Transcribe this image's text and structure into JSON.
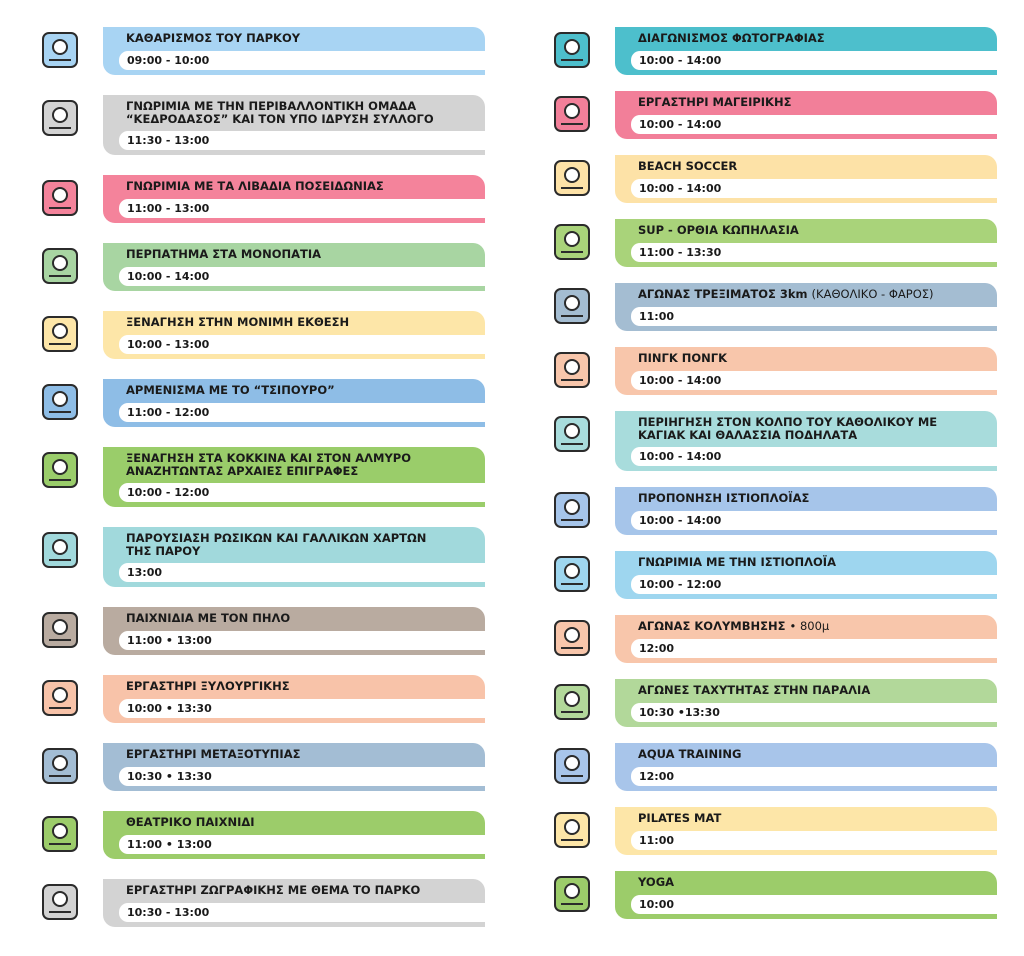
{
  "columns": [
    {
      "items": [
        {
          "title": "ΚΑΘΑΡΙΣΜΟΣ ΤΟΥ ΠΑΡΚΟΥ",
          "time": "09:00 - 10:00",
          "color": "#a8d4f3"
        },
        {
          "title": "ΓΝΩΡΙΜΙΑ ΜΕ ΤΗΝ ΠΕΡΙΒΑΛΛΟΝΤΙΚΗ ΟΜΑΔΑ “ΚΕΔΡΟΔΑΣΟΣ” ΚΑΙ ΤΟΝ ΥΠΟ ΙΔΡΥΣΗ ΣΥΛΛΟΓΟ",
          "time": "11:30 - 13:00",
          "color": "#d3d3d3"
        },
        {
          "title": "ΓΝΩΡΙΜΙΑ ΜΕ ΤΑ ΛΙΒΑΔΙΑ ΠΟΣΕΙΔΩΝΙΑΣ",
          "time": "11:00 - 13:00",
          "color": "#f4839b"
        },
        {
          "title": "ΠΕΡΠΑΤΗΜΑ ΣΤΑ ΜΟΝΟΠΑΤΙΑ",
          "time": "10:00 - 14:00",
          "color": "#a8d5a2"
        },
        {
          "title": "ΞΕΝΑΓΗΣΗ ΣΤΗΝ ΜΟΝΙΜΗ ΕΚΘΕΣΗ",
          "time": "10:00 - 13:00",
          "color": "#fde6a8"
        },
        {
          "title": "ΑΡΜΕΝΙΣΜΑ ΜΕ ΤΟ “ΤΣΙΠΟΥΡΟ”",
          "time": "11:00 - 12:00",
          "color": "#8ebde6"
        },
        {
          "title": "ΞΕΝΑΓΗΣΗ ΣΤΑ ΚΟΚΚΙΝΑ ΚΑΙ ΣΤΟΝ ΑΛΜΥΡΟ ΑΝΑΖΗΤΩΝΤΑΣ ΑΡΧΑΙΕΣ ΕΠΙΓΡΑΦΕΣ",
          "time": "10:00 - 12:00",
          "color": "#9acd6a"
        },
        {
          "title": "ΠΑΡΟΥΣΙΑΣΗ ΡΩΣΙΚΩΝ ΚΑΙ ΓΑΛΛΙΚΩΝ ΧΑΡΤΩΝ ΤΗΣ ΠΑΡΟΥ",
          "time": "13:00",
          "color": "#a1d9dc"
        },
        {
          "title": "ΠΑΙΧΝΙΔΙΑ ΜΕ ΤΟΝ ΠΗΛΟ",
          "time": "11:00 • 13:00",
          "color": "#b9aba0"
        },
        {
          "title": "ΕΡΓΑΣΤΗΡΙ ΞΥΛΟΥΡΓΙΚΗΣ",
          "time": "10:00 • 13:30",
          "color": "#f8c3a9"
        },
        {
          "title": "ΕΡΓΑΣΤΗΡΙ ΜΕΤΑΞΟΤΥΠΙΑΣ",
          "time": "10:30 • 13:30",
          "color": "#a3bdd4"
        },
        {
          "title": "ΘΕΑΤΡΙΚΟ ΠΑΙΧΝΙΔΙ",
          "time": "11:00 • 13:00",
          "color": "#9ccc6a"
        },
        {
          "title": "ΕΡΓΑΣΤΗΡΙ ΖΩΓΡΑΦΙΚΗΣ ΜΕ ΘΕΜΑ ΤΟ ΠΑΡΚΟ",
          "time": "10:30 - 13:00",
          "color": "#d3d3d3"
        }
      ]
    },
    {
      "items": [
        {
          "title": "ΔΙΑΓΩΝΙΣΜΟΣ ΦΩΤΟΓΡΑΦΙΑΣ",
          "time": "10:00 - 14:00",
          "color": "#4dbfcc"
        },
        {
          "title": "ΕΡΓΑΣΤΗΡΙ ΜΑΓΕΙΡΙΚΗΣ",
          "time": "10:00 - 14:00",
          "color": "#f27f99"
        },
        {
          "title": "BEACH SOCCER",
          "time": "10:00 - 14:00",
          "color": "#fde2a7"
        },
        {
          "title": "SUP - ΟΡΘΙΑ ΚΩΠΗΛΑΣΙΑ",
          "time": "11:00 - 13:30",
          "color": "#a9d37a"
        },
        {
          "title": "ΑΓΩΝΑΣ ΤΡΕΞΙΜΑΤΟΣ 3km",
          "note": "(ΚΑΘΟΛΙΚΟ - ΦΑΡΟΣ)",
          "time": "11:00",
          "color": "#a4bdd2"
        },
        {
          "title": "ΠΙΝΓΚ ΠΟΝΓΚ",
          "time": "10:00 - 14:00",
          "color": "#f8c6ab"
        },
        {
          "title": "ΠΕΡΙΗΓΗΣΗ ΣΤΟΝ ΚΟΛΠΟ ΤΟΥ ΚΑΘΟΛΙΚΟΥ ΜΕ ΚΑΓΙΑΚ ΚΑΙ ΘΑΛΑΣΣΙΑ ΠΟΔΗΛΑΤΑ",
          "time": "10:00 - 14:00",
          "color": "#a8dcdc"
        },
        {
          "title": "ΠΡΟΠΟΝΗΣΗ ΙΣΤΙΟΠΛΟΪΑΣ",
          "time": "10:00 - 14:00",
          "color": "#a6c5ea"
        },
        {
          "title": "ΓΝΩΡΙΜΙΑ ΜΕ ΤΗΝ ΙΣΤΙΟΠΛΟΪΑ",
          "time": "10:00 - 12:00",
          "color": "#9ed6ef"
        },
        {
          "title": "ΑΓΩΝΑΣ ΚΟΛΥΜΒΗΣΗΣ",
          "note": "• 800μ",
          "time": "12:00",
          "color": "#f8c6ab"
        },
        {
          "title": "ΑΓΩΝΕΣ ΤΑΧΥΤΗΤΑΣ ΣΤΗΝ ΠΑΡΑΛΙΑ",
          "time": "10:30 •13:30",
          "color": "#b2d89a"
        },
        {
          "title": "AQUA TRAINING",
          "time": "12:00",
          "color": "#a8c5ea"
        },
        {
          "title": "PILATES MAT",
          "time": "11:00",
          "color": "#fde6a8"
        },
        {
          "title": "YOGA",
          "time": "10:00",
          "color": "#9ccc6a"
        }
      ]
    }
  ]
}
